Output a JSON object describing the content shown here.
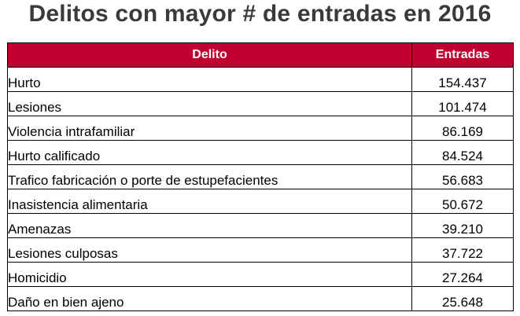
{
  "title": "Delitos con mayor # de entradas en 2016",
  "colors": {
    "header_bg": "#c0002f",
    "header_text": "#ffffff",
    "title_text": "#3a3a3a",
    "border": "#000000"
  },
  "table": {
    "headers": [
      "Delito",
      "Entradas"
    ],
    "rows": [
      {
        "delito": "Hurto",
        "entradas": "154.437"
      },
      {
        "delito": "Lesiones",
        "entradas": "101.474"
      },
      {
        "delito": "Violencia intrafamiliar",
        "entradas": "86.169"
      },
      {
        "delito": "Hurto calificado",
        "entradas": "84.524"
      },
      {
        "delito": "Trafico fabricación o porte de estupefacientes",
        "entradas": "56.683"
      },
      {
        "delito": "Inasistencia alimentaria",
        "entradas": "50.672"
      },
      {
        "delito": "Amenazas",
        "entradas": "39.210"
      },
      {
        "delito": "Lesiones culposas",
        "entradas": "37.722"
      },
      {
        "delito": "Homicidio",
        "entradas": "27.264"
      },
      {
        "delito": "Daño en bien ajeno",
        "entradas": "25.648"
      }
    ]
  }
}
